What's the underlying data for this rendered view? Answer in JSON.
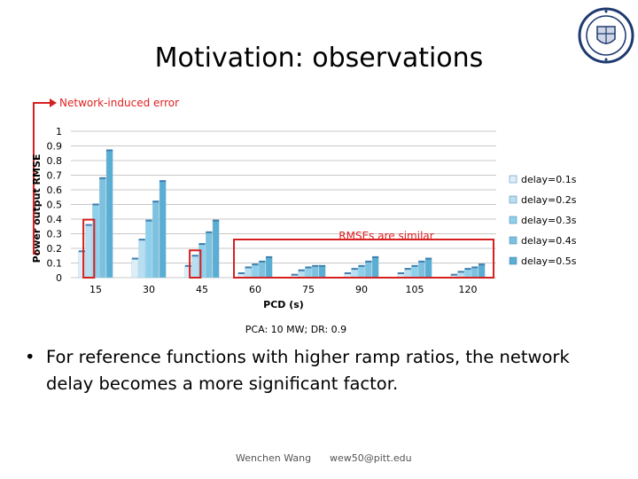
{
  "slide": {
    "title": "Motivation: observations",
    "bullet": "For reference functions with higher ramp ratios, the network delay becomes a more significant factor.",
    "footer_author": "Wenchen Wang",
    "footer_email": "wew50@pitt.edu"
  },
  "chart_data": {
    "type": "bar",
    "title": "",
    "annotation_top": "Network-induced error",
    "annotation_box": "RMSEs are similar",
    "caption": "PCA: 10 MW; DR: 0.9",
    "xlabel": "PCD (s)",
    "ylabel": "Power output RMSE",
    "ylim": [
      0,
      1
    ],
    "yticks": [
      "0",
      "0.1",
      "0.2",
      "0.3",
      "0.4",
      "0.5",
      "0.6",
      "0.7",
      "0.8",
      "0.9",
      "1"
    ],
    "categories": [
      "15",
      "30",
      "45",
      "60",
      "75",
      "90",
      "105",
      "120"
    ],
    "grid": true,
    "legend_position": "right",
    "series": [
      {
        "name": "delay=0.1s",
        "color": "#dceef8",
        "values": [
          0.18,
          0.13,
          0.08,
          0.03,
          0.02,
          0.03,
          0.03,
          0.02
        ]
      },
      {
        "name": "delay=0.2s",
        "color": "#b7def1",
        "values": [
          0.36,
          0.26,
          0.15,
          0.07,
          0.05,
          0.06,
          0.06,
          0.04
        ]
      },
      {
        "name": "delay=0.3s",
        "color": "#8dd0ec",
        "values": [
          0.5,
          0.39,
          0.23,
          0.09,
          0.07,
          0.08,
          0.08,
          0.06
        ]
      },
      {
        "name": "delay=0.4s",
        "color": "#7cc2e0",
        "values": [
          0.68,
          0.52,
          0.31,
          0.11,
          0.08,
          0.11,
          0.11,
          0.07
        ]
      },
      {
        "name": "delay=0.5s",
        "color": "#5aaed3",
        "values": [
          0.87,
          0.66,
          0.39,
          0.14,
          0.08,
          0.14,
          0.13,
          0.09
        ]
      }
    ]
  }
}
